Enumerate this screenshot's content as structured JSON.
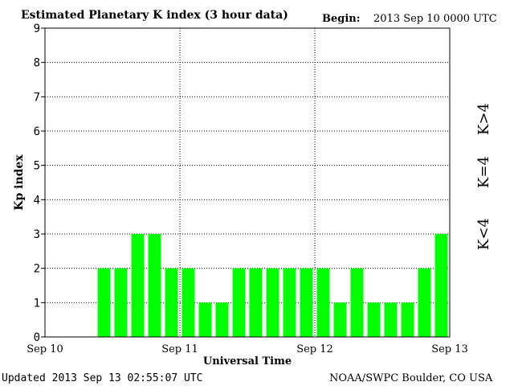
{
  "header": {
    "title": "Estimated Planetary K index (3 hour data)",
    "begin_label": "Begin:",
    "begin_value": "2013 Sep 10 0000 UTC"
  },
  "footer": {
    "updated": "Updated 2013 Sep 13 02:55:07 UTC",
    "source": "NOAA/SWPC Boulder, CO USA"
  },
  "legend": {
    "low": "K<4",
    "mid": "K=4",
    "high": "K>4"
  },
  "colors": {
    "low": "#00ff00",
    "mid": "#ffd700",
    "high": "#ff3000"
  },
  "chart_data": {
    "type": "bar",
    "xlabel": "Universal Time",
    "ylabel": "Kp index",
    "ylim": [
      0,
      9
    ],
    "y_ticks": [
      "0",
      "1",
      "2",
      "3",
      "4",
      "5",
      "6",
      "7",
      "8",
      "9"
    ],
    "x_ticks": [
      "Sep 10",
      "Sep 11",
      "Sep 12",
      "Sep 13"
    ],
    "grid": true,
    "values": [
      null,
      null,
      null,
      2,
      2,
      3,
      3,
      2,
      2,
      1,
      1,
      2,
      2,
      2,
      2,
      2,
      2,
      1,
      2,
      1,
      1,
      1,
      2,
      3
    ]
  }
}
